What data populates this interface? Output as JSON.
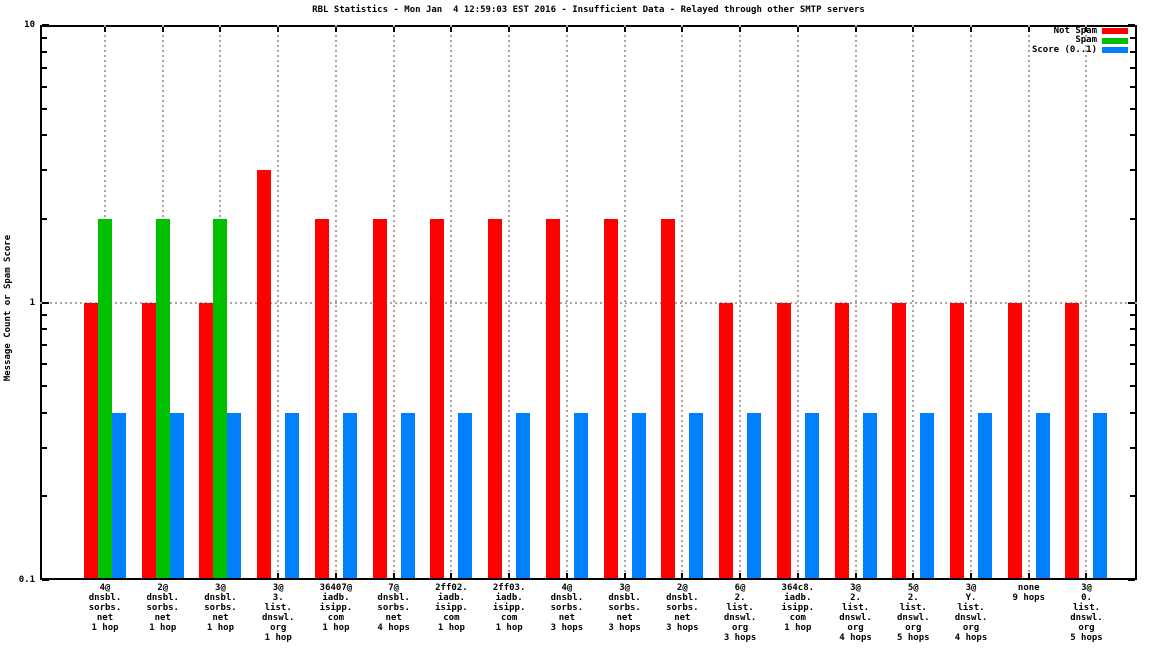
{
  "title": "RBL Statistics - Mon Jan  4 12:59:03 EST 2016 - Insufficient Data - Relayed through other SMTP servers",
  "chart_data": {
    "type": "bar",
    "title": "RBL Statistics - Mon Jan  4 12:59:03 EST 2016 - Insufficient Data - Relayed through other SMTP servers",
    "ylabel": "Message Count or Spam Score",
    "xlabel": "",
    "y_scale": "log10",
    "ylim": [
      0.1,
      10
    ],
    "ytick_values": [
      10,
      1,
      0.1
    ],
    "ytick_labels": [
      "10",
      "1",
      "0.1"
    ],
    "grid": true,
    "horizontal_gridline_at": 1,
    "legend_position": "top-right-inside",
    "colors": {
      "not_spam": "#ff0000",
      "spam": "#00c000",
      "score": "#0080ff",
      "grid": "#a6a6a6",
      "axis": "#000000",
      "background": "#ffffff"
    },
    "categories": [
      [
        "4@",
        "dnsbl.",
        "sorbs.",
        "net",
        "1 hop"
      ],
      [
        "2@",
        "dnsbl.",
        "sorbs.",
        "net",
        "1 hop"
      ],
      [
        "3@",
        "dnsbl.",
        "sorbs.",
        "net",
        "1 hop"
      ],
      [
        "3@",
        "3.",
        "list.",
        "dnswl.",
        "org",
        "1 hop"
      ],
      [
        "36407@",
        "iadb.",
        "isipp.",
        "com",
        "1 hop"
      ],
      [
        "7@",
        "dnsbl.",
        "sorbs.",
        "net",
        "4 hops"
      ],
      [
        "2ff02.",
        "iadb.",
        "isipp.",
        "com",
        "1 hop"
      ],
      [
        "2ff03.",
        "iadb.",
        "isipp.",
        "com",
        "1 hop"
      ],
      [
        "4@",
        "dnsbl.",
        "sorbs.",
        "net",
        "3 hops"
      ],
      [
        "3@",
        "dnsbl.",
        "sorbs.",
        "net",
        "3 hops"
      ],
      [
        "2@",
        "dnsbl.",
        "sorbs.",
        "net",
        "3 hops"
      ],
      [
        "6@",
        "2.",
        "list.",
        "dnswl.",
        "org",
        "3 hops"
      ],
      [
        "364c8.",
        "iadb.",
        "isipp.",
        "com",
        "1 hop"
      ],
      [
        "3@",
        "2.",
        "list.",
        "dnswl.",
        "org",
        "4 hops"
      ],
      [
        "5@",
        "2.",
        "list.",
        "dnswl.",
        "org",
        "5 hops"
      ],
      [
        "3@",
        "Y.",
        "list.",
        "dnswl.",
        "org",
        "4 hops"
      ],
      [
        "none",
        "9 hops"
      ],
      [
        "3@",
        "0.",
        "list.",
        "dnswl.",
        "org",
        "5 hops"
      ]
    ],
    "series": [
      {
        "name": "Not Spam",
        "color": "#ff0000",
        "values": [
          1,
          1,
          1,
          3,
          2,
          2,
          2,
          2,
          2,
          2,
          2,
          1,
          1,
          1,
          1,
          1,
          1,
          1
        ]
      },
      {
        "name": "Spam",
        "color": "#00c000",
        "values": [
          2,
          2,
          2,
          null,
          null,
          null,
          null,
          null,
          null,
          null,
          null,
          null,
          null,
          null,
          null,
          null,
          null,
          null
        ]
      },
      {
        "name": "Score (0..1)",
        "color": "#0080ff",
        "values": [
          0.4,
          0.4,
          0.4,
          0.4,
          0.4,
          0.4,
          0.4,
          0.4,
          0.4,
          0.4,
          0.4,
          0.4,
          0.4,
          0.4,
          0.4,
          0.4,
          0.4,
          0.4
        ]
      }
    ]
  }
}
